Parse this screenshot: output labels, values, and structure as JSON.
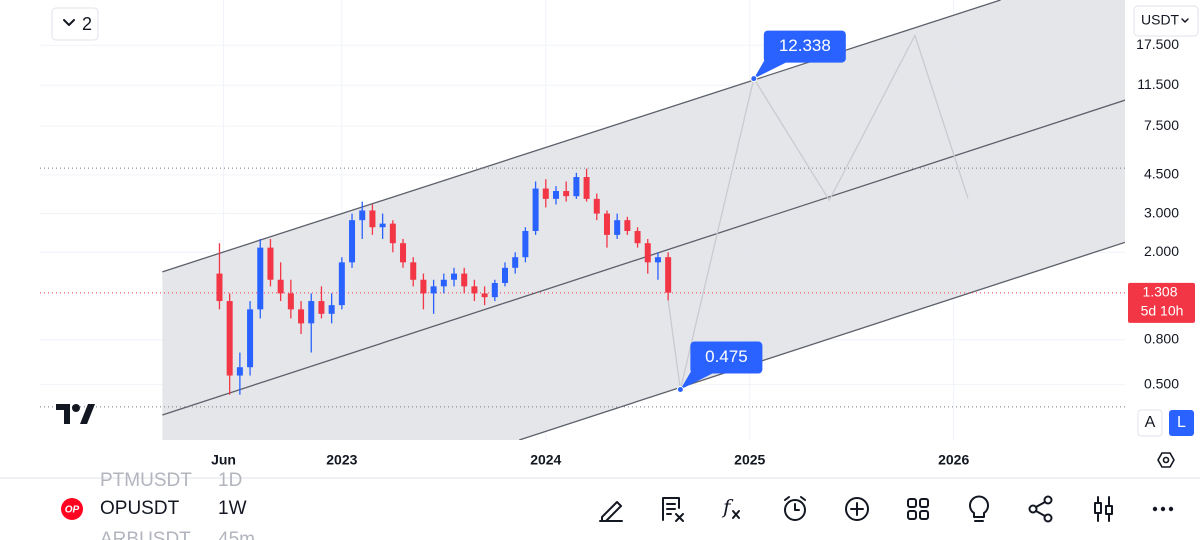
{
  "chart_data": {
    "type": "candlestick",
    "log_scale": true,
    "grid": true,
    "up_color": "#2962ff",
    "down_color": "#f23645",
    "x": [
      2022.4,
      2022.45,
      2022.5,
      2022.55,
      2022.6,
      2022.65,
      2022.7,
      2022.75,
      2022.8,
      2022.85,
      2022.9,
      2022.95,
      2023.0,
      2023.05,
      2023.1,
      2023.15,
      2023.2,
      2023.25,
      2023.3,
      2023.35,
      2023.4,
      2023.45,
      2023.5,
      2023.55,
      2023.6,
      2023.65,
      2023.7,
      2023.75,
      2023.8,
      2023.85,
      2023.9,
      2023.95,
      2024.0,
      2024.05,
      2024.1,
      2024.15,
      2024.2,
      2024.25,
      2024.3,
      2024.35,
      2024.4,
      2024.45,
      2024.5,
      2024.55,
      2024.6
    ],
    "open": [
      1.6,
      1.2,
      0.55,
      0.6,
      1.1,
      2.1,
      1.5,
      1.3,
      1.1,
      0.95,
      1.2,
      1.05,
      1.15,
      1.8,
      2.8,
      3.1,
      2.6,
      2.7,
      2.2,
      1.8,
      1.5,
      1.3,
      1.4,
      1.5,
      1.6,
      1.4,
      1.3,
      1.25,
      1.45,
      1.7,
      1.9,
      2.5,
      3.9,
      3.5,
      3.8,
      3.6,
      4.4,
      3.5,
      3.0,
      2.4,
      2.8,
      2.5,
      2.2,
      1.8,
      1.9
    ],
    "high": [
      2.2,
      1.3,
      0.7,
      1.2,
      2.3,
      2.3,
      1.8,
      1.5,
      1.2,
      1.3,
      1.4,
      1.3,
      1.9,
      3.0,
      3.4,
      3.3,
      3.0,
      2.8,
      2.3,
      1.9,
      1.6,
      1.5,
      1.6,
      1.7,
      1.7,
      1.5,
      1.4,
      1.5,
      1.8,
      2.0,
      2.6,
      4.2,
      4.3,
      4.0,
      4.2,
      4.6,
      4.8,
      3.7,
      3.1,
      3.0,
      2.9,
      2.6,
      2.3,
      2.0,
      2.0
    ],
    "low": [
      1.1,
      0.45,
      0.45,
      0.55,
      1.0,
      1.4,
      1.2,
      1.0,
      0.85,
      0.7,
      1.0,
      0.95,
      1.1,
      1.7,
      2.3,
      2.4,
      2.3,
      2.0,
      1.7,
      1.4,
      1.1,
      1.05,
      1.3,
      1.4,
      1.3,
      1.2,
      1.15,
      1.2,
      1.4,
      1.6,
      1.8,
      2.4,
      3.2,
      3.3,
      3.4,
      3.5,
      3.4,
      2.8,
      2.1,
      2.3,
      2.4,
      2.1,
      1.6,
      1.5,
      1.2
    ],
    "close": [
      1.2,
      0.55,
      0.6,
      1.1,
      2.1,
      1.5,
      1.3,
      1.1,
      0.95,
      1.2,
      1.05,
      1.15,
      1.8,
      2.8,
      3.1,
      2.6,
      2.7,
      2.2,
      1.8,
      1.5,
      1.3,
      1.4,
      1.5,
      1.6,
      1.4,
      1.3,
      1.25,
      1.45,
      1.7,
      1.9,
      2.5,
      3.9,
      3.5,
      3.8,
      3.6,
      4.4,
      3.5,
      3.0,
      2.4,
      2.8,
      2.5,
      2.2,
      1.8,
      1.9,
      1.31
    ],
    "xlim": [
      2021.52,
      2026.84
    ],
    "xticks": [
      {
        "value": 2022.42,
        "label": "Jun"
      },
      2023,
      2024,
      2025,
      2026
    ],
    "ylim": [
      0.28,
      28.1
    ],
    "yticks": [
      {
        "value": 17.5,
        "label": "17.500"
      },
      {
        "value": 11.5,
        "label": "11.500"
      },
      {
        "value": 7.5,
        "label": "7.500"
      },
      {
        "value": 4.5,
        "label": "4.500"
      },
      {
        "value": 3,
        "label": "3.000"
      },
      {
        "value": 2,
        "label": "2.000"
      },
      {
        "value": 0.8,
        "label": "0.800"
      },
      {
        "value": 0.5,
        "label": "0.500"
      }
    ],
    "last_price": 1.308,
    "countdown": "5d 10h",
    "reference_lines": [
      4.83,
      0.396
    ],
    "channel": {
      "upper": {
        "x": [
          2022.12,
          2026.23
        ],
        "values": [
          1.63,
          28.1
        ]
      },
      "middle": {
        "x": [
          2022.12,
          2026.84
        ],
        "values": [
          0.364,
          9.84
        ]
      },
      "lower": {
        "x": [
          2023.87,
          2026.84
        ],
        "values": [
          0.28,
          2.22
        ]
      }
    },
    "projection": {
      "x": [
        2024.6,
        2024.66,
        2025.02,
        2025.39,
        2025.81,
        2026.07
      ],
      "values": [
        1.21,
        0.475,
        12.338,
        3.45,
        19.4,
        3.52
      ]
    },
    "annotations": [
      {
        "x": 2025.02,
        "value": 12.338
      },
      {
        "x": 2024.66,
        "value": 0.475
      }
    ]
  },
  "ui": {
    "collapse_count": "2",
    "currency": "USDT",
    "symbol_icon": "OP",
    "symbol": "OPUSDT",
    "interval": "1W",
    "prev_symbol": "PTMUSDT",
    "prev_interval": "1D",
    "next_symbol": "ARBUSDT",
    "next_interval": "45m",
    "scale_auto": "A",
    "scale_log": "L"
  }
}
